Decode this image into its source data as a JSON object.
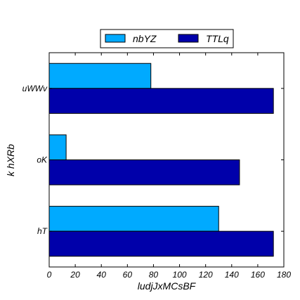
{
  "chart_data": {
    "type": "bar",
    "orientation": "horizontal",
    "categories": [
      "hT",
      "oK",
      "uWWv"
    ],
    "series": [
      {
        "name": "nbYZ",
        "color": "#00aaff",
        "values": [
          130,
          13,
          78
        ]
      },
      {
        "name": "TTLq",
        "color": "#0000aa",
        "values": [
          172,
          146,
          172
        ]
      }
    ],
    "xlabel": "ludjJxMCsBF",
    "ylabel": "k hXRb",
    "xlim": [
      0,
      180
    ],
    "xticks": [
      "0",
      "20",
      "40",
      "60",
      "80",
      "100",
      "120",
      "140",
      "160",
      "180"
    ],
    "grid": false,
    "legend_position": "top-center"
  }
}
